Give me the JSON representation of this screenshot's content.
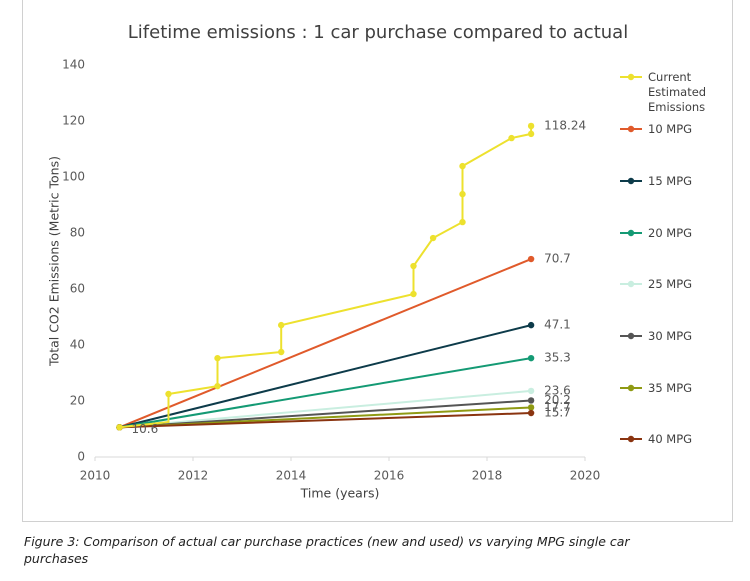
{
  "chart_data": {
    "type": "line",
    "title": "Lifetime emissions : 1 car purchase compared to actual",
    "x_label": "Time (years)",
    "y_label": "Total CO2 Emissions (Metric Tons)",
    "xlim": [
      2010,
      2020
    ],
    "xticks": [
      2010,
      2012,
      2014,
      2016,
      2018,
      2020
    ],
    "ylim": [
      0,
      140
    ],
    "yticks": [
      0,
      20,
      40,
      60,
      80,
      100,
      120,
      140
    ],
    "grid": false,
    "legend": "right",
    "series": [
      {
        "name": "Current Estimated Emissions",
        "color": "#ede12e",
        "x": [
          2010.5,
          2011.5,
          2011.5,
          2012.5,
          2012.5,
          2013.8,
          2013.8,
          2016.5,
          2016.5,
          2016.9,
          2017.5,
          2017.5,
          2017.5,
          2018.5,
          2018.9,
          2018.9
        ],
        "values": [
          10.6,
          12.5,
          22.5,
          25.3,
          35.3,
          37.5,
          47.1,
          58.2,
          68.2,
          78.2,
          83.9,
          93.9,
          103.9,
          113.9,
          115.4,
          118.24
        ]
      },
      {
        "name": "10 MPG",
        "color": "#e05a2b",
        "x": [
          2010.5,
          2018.9
        ],
        "values": [
          10.6,
          70.7
        ]
      },
      {
        "name": "15 MPG",
        "color": "#0d3b4a",
        "x": [
          2010.5,
          2018.9
        ],
        "values": [
          10.6,
          47.1
        ]
      },
      {
        "name": "20 MPG",
        "color": "#149a74",
        "x": [
          2010.5,
          2018.9
        ],
        "values": [
          10.6,
          35.3
        ]
      },
      {
        "name": "25 MPG",
        "color": "#c9eee0",
        "x": [
          2010.5,
          2018.9
        ],
        "values": [
          10.6,
          23.6
        ]
      },
      {
        "name": "30 MPG",
        "color": "#555555",
        "x": [
          2010.5,
          2018.9
        ],
        "values": [
          10.6,
          20.2
        ]
      },
      {
        "name": "35 MPG",
        "color": "#8f9a13",
        "x": [
          2010.5,
          2018.9
        ],
        "values": [
          10.6,
          17.7
        ]
      },
      {
        "name": "40 MPG",
        "color": "#8a3410",
        "x": [
          2010.5,
          2018.9
        ],
        "values": [
          10.6,
          15.7
        ]
      }
    ]
  },
  "caption": "Figure 3: Comparison of actual car purchase practices (new and used) vs varying MPG single car purchases"
}
